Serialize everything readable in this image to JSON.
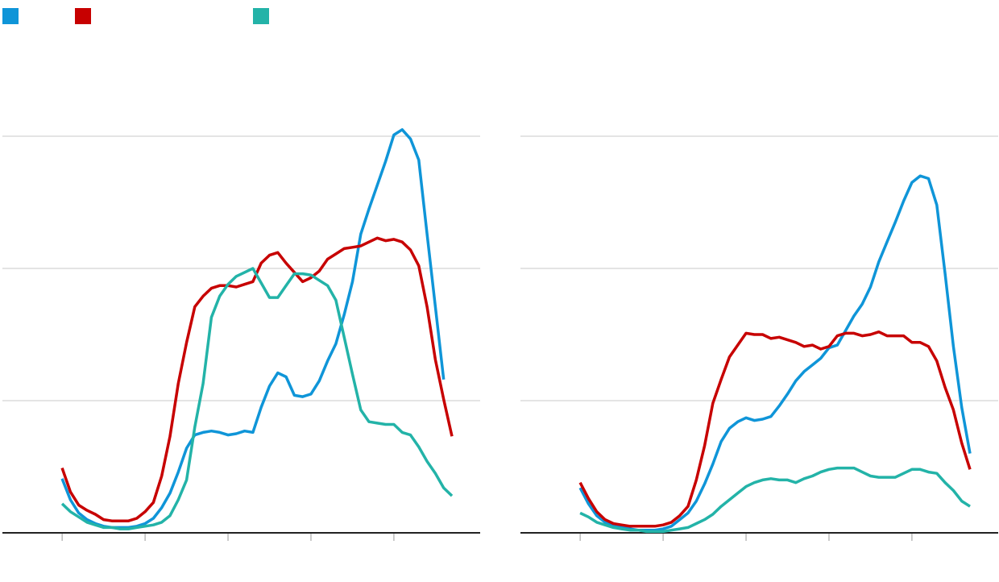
{
  "chart_data": [
    {
      "type": "line",
      "x": [
        0,
        1,
        2,
        3,
        4,
        5,
        6,
        7,
        8,
        9,
        10,
        11,
        12,
        13,
        14,
        15,
        16,
        17,
        18,
        19,
        20,
        21,
        22,
        23,
        24,
        25,
        26,
        27,
        28,
        29,
        30,
        31,
        32,
        33,
        34,
        35,
        36,
        37,
        38,
        39,
        40,
        41,
        42,
        43,
        44,
        45,
        46,
        47
      ],
      "series": [
        {
          "color": "#0f95d8",
          "values": [
            0.41,
            0.25,
            0.15,
            0.1,
            0.07,
            0.05,
            0.04,
            0.04,
            0.04,
            0.05,
            0.07,
            0.11,
            0.19,
            0.3,
            0.46,
            0.64,
            0.74,
            0.76,
            0.77,
            0.76,
            0.74,
            0.75,
            0.77,
            0.76,
            0.95,
            1.11,
            1.21,
            1.18,
            1.04,
            1.03,
            1.05,
            1.15,
            1.3,
            1.43,
            1.65,
            1.9,
            2.26,
            2.45,
            2.63,
            2.81,
            3.01,
            3.05,
            2.98,
            2.82,
            2.26,
            1.71,
            1.16,
            null
          ]
        },
        {
          "color": "#c70000",
          "values": [
            0.49,
            0.31,
            0.21,
            0.17,
            0.14,
            0.1,
            0.09,
            0.09,
            0.09,
            0.11,
            0.16,
            0.23,
            0.43,
            0.73,
            1.13,
            1.44,
            1.71,
            1.79,
            1.85,
            1.87,
            1.87,
            1.86,
            1.88,
            1.9,
            2.04,
            2.1,
            2.12,
            2.04,
            1.97,
            1.9,
            1.93,
            1.98,
            2.07,
            2.11,
            2.15,
            2.16,
            2.17,
            2.2,
            2.23,
            2.21,
            2.22,
            2.2,
            2.14,
            2.02,
            1.71,
            1.31,
            1.01,
            0.73
          ]
        },
        {
          "color": "#23b3a8",
          "values": [
            0.22,
            0.16,
            0.12,
            0.08,
            0.06,
            0.04,
            0.04,
            0.03,
            0.03,
            0.04,
            0.05,
            0.06,
            0.08,
            0.13,
            0.25,
            0.4,
            0.8,
            1.13,
            1.63,
            1.79,
            1.88,
            1.94,
            1.97,
            2.0,
            1.89,
            1.78,
            1.78,
            1.87,
            1.96,
            1.96,
            1.95,
            1.91,
            1.87,
            1.76,
            1.48,
            1.2,
            0.93,
            0.84,
            0.83,
            0.82,
            0.82,
            0.76,
            0.74,
            0.65,
            0.54,
            0.45,
            0.34,
            0.28
          ]
        }
      ],
      "xlim": [
        -7.2,
        50.4
      ],
      "xticks": [
        0,
        10,
        20,
        30,
        40
      ],
      "ylim": [
        0,
        3.5
      ],
      "yticks": [
        0,
        1,
        2,
        3
      ],
      "grid": true
    },
    {
      "type": "line",
      "x": [
        0,
        1,
        2,
        3,
        4,
        5,
        6,
        7,
        8,
        9,
        10,
        11,
        12,
        13,
        14,
        15,
        16,
        17,
        18,
        19,
        20,
        21,
        22,
        23,
        24,
        25,
        26,
        27,
        28,
        29,
        30,
        31,
        32,
        33,
        34,
        35,
        36,
        37,
        38,
        39,
        40,
        41,
        42,
        43,
        44,
        45,
        46,
        47
      ],
      "series": [
        {
          "color": "#0f95d8",
          "values": [
            0.34,
            0.22,
            0.13,
            0.08,
            0.05,
            0.04,
            0.03,
            0.02,
            0.02,
            0.02,
            0.03,
            0.05,
            0.1,
            0.15,
            0.24,
            0.37,
            0.52,
            0.69,
            0.79,
            0.84,
            0.87,
            0.85,
            0.86,
            0.88,
            0.96,
            1.05,
            1.15,
            1.22,
            1.27,
            1.32,
            1.4,
            1.42,
            1.53,
            1.64,
            1.73,
            1.86,
            2.05,
            2.2,
            2.35,
            2.51,
            2.65,
            2.7,
            2.68,
            2.48,
            1.96,
            1.41,
            0.95,
            0.6
          ]
        },
        {
          "color": "#c70000",
          "values": [
            0.38,
            0.26,
            0.16,
            0.1,
            0.07,
            0.06,
            0.05,
            0.05,
            0.05,
            0.05,
            0.06,
            0.08,
            0.13,
            0.2,
            0.4,
            0.66,
            0.98,
            1.16,
            1.33,
            1.42,
            1.51,
            1.5,
            1.5,
            1.47,
            1.48,
            1.46,
            1.44,
            1.41,
            1.42,
            1.39,
            1.41,
            1.49,
            1.51,
            1.51,
            1.49,
            1.5,
            1.52,
            1.49,
            1.49,
            1.49,
            1.44,
            1.44,
            1.41,
            1.3,
            1.1,
            0.93,
            0.68,
            0.48
          ]
        },
        {
          "color": "#23b3a8",
          "values": [
            0.15,
            0.12,
            0.08,
            0.06,
            0.04,
            0.03,
            0.02,
            0.02,
            0.01,
            0.01,
            0.01,
            0.02,
            0.03,
            0.04,
            0.07,
            0.1,
            0.14,
            0.2,
            0.25,
            0.3,
            0.35,
            0.38,
            0.4,
            0.41,
            0.4,
            0.4,
            0.38,
            0.41,
            0.43,
            0.46,
            0.48,
            0.49,
            0.49,
            0.49,
            0.46,
            0.43,
            0.42,
            0.42,
            0.42,
            0.45,
            0.48,
            0.48,
            0.46,
            0.45,
            0.38,
            0.32,
            0.24,
            0.2
          ]
        }
      ],
      "xlim": [
        -7.2,
        50.4
      ],
      "xticks": [
        0,
        10,
        20,
        30,
        40
      ],
      "ylim": [
        0,
        3.5
      ],
      "yticks": [
        0,
        1,
        2,
        3
      ],
      "grid": true
    }
  ]
}
